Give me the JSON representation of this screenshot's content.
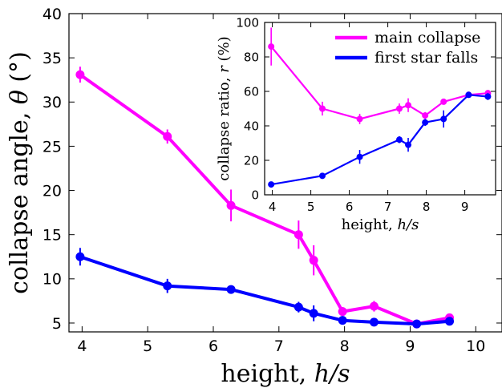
{
  "chart_data": [
    {
      "type": "line",
      "xlabel": "height, h/s",
      "ylabel": "collapse angle, θ (°)",
      "xlim": [
        3.8,
        10.4
      ],
      "ylim": [
        4,
        40
      ],
      "xticks": [
        4,
        5,
        6,
        7,
        8,
        9,
        10
      ],
      "yticks": [
        5,
        10,
        15,
        20,
        25,
        30,
        35,
        40
      ],
      "grid": false,
      "series": [
        {
          "color": "#ff00ff",
          "x": [
            3.97,
            5.3,
            6.27,
            7.3,
            7.53,
            7.97,
            8.45,
            9.1,
            9.6
          ],
          "y": [
            33.1,
            26.1,
            18.3,
            15.0,
            12.1,
            6.3,
            6.9,
            4.9,
            5.6
          ],
          "yerr": [
            0.9,
            0.8,
            1.8,
            1.6,
            1.7,
            0.5,
            0.6,
            0.3,
            0.3
          ]
        },
        {
          "color": "#0000ff",
          "x": [
            3.97,
            5.3,
            6.27,
            7.3,
            7.53,
            7.97,
            8.45,
            9.1,
            9.6
          ],
          "y": [
            12.5,
            9.2,
            8.8,
            6.8,
            6.1,
            5.3,
            5.1,
            4.9,
            5.2
          ],
          "yerr": [
            1.0,
            0.8,
            0.3,
            0.6,
            0.9,
            0.2,
            0.2,
            0.2,
            0.2
          ]
        }
      ]
    },
    {
      "type": "line",
      "xlabel": "height, h/s",
      "ylabel": "collapse ratio, r (%)",
      "xlim": [
        3.8,
        9.8
      ],
      "ylim": [
        0,
        100
      ],
      "xticks": [
        4,
        5,
        6,
        7,
        8,
        9
      ],
      "yticks": [
        0,
        20,
        40,
        60,
        80,
        100
      ],
      "grid": false,
      "legend": "top-right",
      "series": [
        {
          "name": "main collapse",
          "color": "#ff00ff",
          "x": [
            3.97,
            5.3,
            6.27,
            7.3,
            7.53,
            7.97,
            8.45,
            9.1,
            9.6
          ],
          "y": [
            86,
            50,
            44,
            50,
            52,
            46,
            54,
            58,
            59
          ],
          "yerr": [
            11,
            4,
            3,
            3,
            4,
            2,
            1,
            1,
            1
          ]
        },
        {
          "name": "first star falls",
          "color": "#0000ff",
          "x": [
            3.97,
            5.3,
            6.27,
            7.3,
            7.53,
            7.97,
            8.45,
            9.1,
            9.6
          ],
          "y": [
            6,
            11,
            22,
            32,
            29,
            42,
            44,
            58,
            57
          ],
          "yerr": [
            0,
            1,
            4,
            2,
            4,
            2,
            5,
            1,
            2
          ]
        }
      ]
    }
  ]
}
